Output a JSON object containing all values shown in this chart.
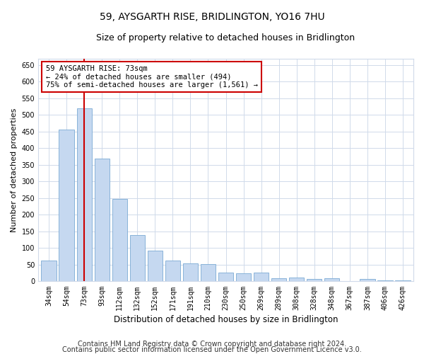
{
  "title": "59, AYSGARTH RISE, BRIDLINGTON, YO16 7HU",
  "subtitle": "Size of property relative to detached houses in Bridlington",
  "xlabel": "Distribution of detached houses by size in Bridlington",
  "ylabel": "Number of detached properties",
  "categories": [
    "34sqm",
    "54sqm",
    "73sqm",
    "93sqm",
    "112sqm",
    "132sqm",
    "152sqm",
    "171sqm",
    "191sqm",
    "210sqm",
    "230sqm",
    "250sqm",
    "269sqm",
    "289sqm",
    "308sqm",
    "328sqm",
    "348sqm",
    "367sqm",
    "387sqm",
    "406sqm",
    "426sqm"
  ],
  "values": [
    62,
    457,
    521,
    368,
    248,
    140,
    92,
    62,
    55,
    53,
    26,
    25,
    26,
    10,
    12,
    7,
    9,
    2,
    7,
    4,
    3
  ],
  "bar_color": "#c5d8f0",
  "bar_edge_color": "#7baad4",
  "red_line_x": 2,
  "annotation_text": "59 AYSGARTH RISE: 73sqm\n← 24% of detached houses are smaller (494)\n75% of semi-detached houses are larger (1,561) →",
  "annotation_box_facecolor": "#ffffff",
  "annotation_box_edgecolor": "#cc0000",
  "ylim": [
    0,
    670
  ],
  "yticks": [
    0,
    50,
    100,
    150,
    200,
    250,
    300,
    350,
    400,
    450,
    500,
    550,
    600,
    650
  ],
  "footer_line1": "Contains HM Land Registry data © Crown copyright and database right 2024.",
  "footer_line2": "Contains public sector information licensed under the Open Government Licence v3.0.",
  "fig_facecolor": "#ffffff",
  "axes_facecolor": "#ffffff",
  "grid_color": "#d0daea",
  "title_fontsize": 10,
  "subtitle_fontsize": 9,
  "tick_fontsize": 7,
  "ylabel_fontsize": 8,
  "xlabel_fontsize": 8.5,
  "footer_fontsize": 7,
  "annotation_fontsize": 7.5
}
